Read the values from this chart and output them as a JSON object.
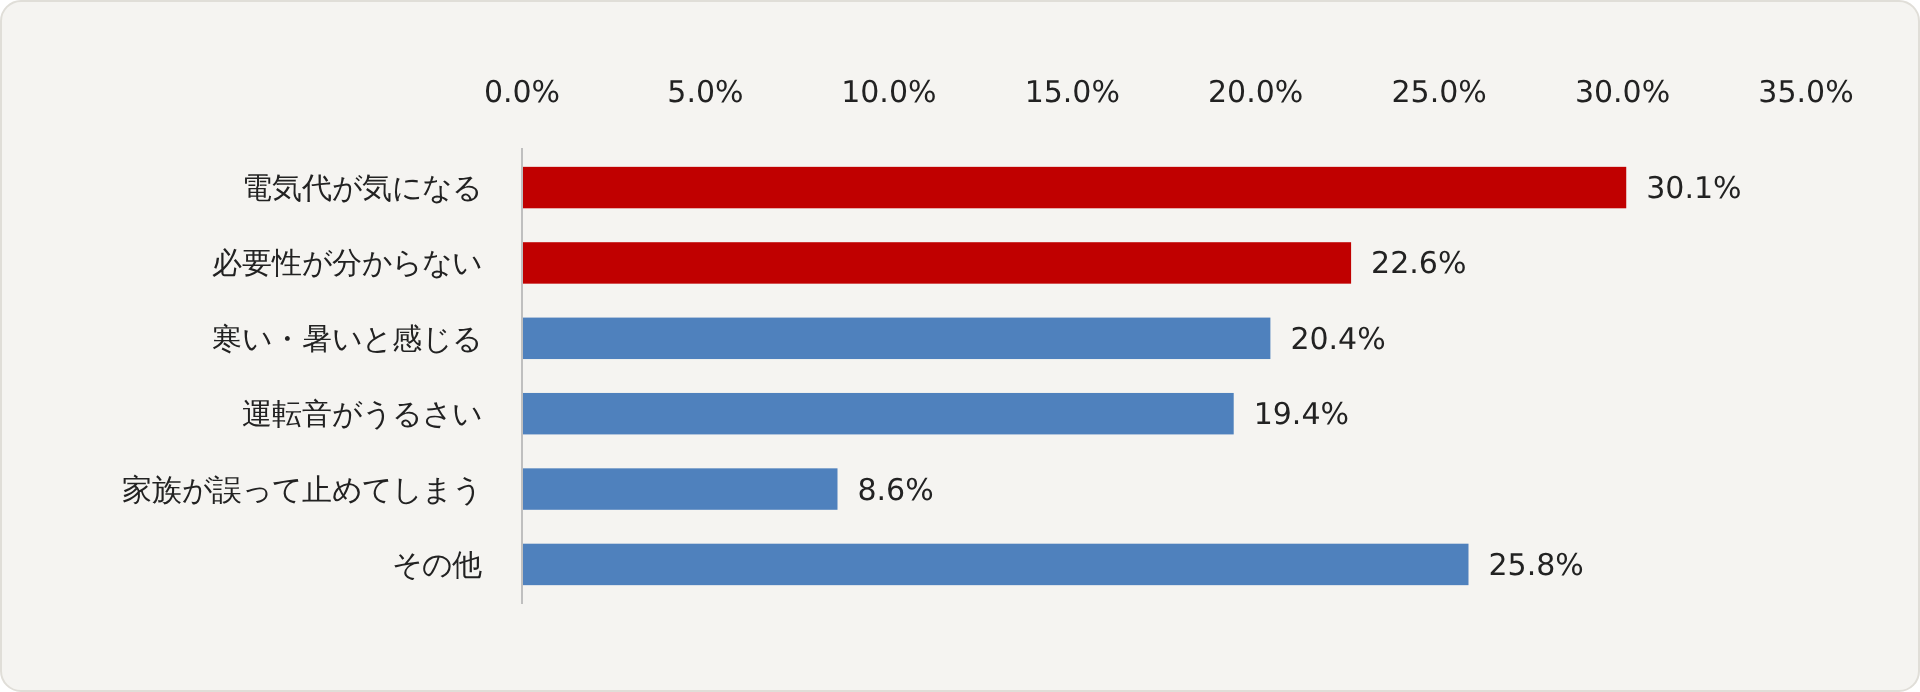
{
  "chart_data": {
    "type": "bar",
    "orientation": "horizontal",
    "categories": [
      "電気代が気になる",
      "必要性が分からない",
      "寒い・暑いと感じる",
      "運転音がうるさい",
      "家族が誤って止めてしまう",
      "その他"
    ],
    "values": [
      30.1,
      22.6,
      20.4,
      19.4,
      8.6,
      25.8
    ],
    "colors": [
      "#c00000",
      "#c00000",
      "#4f81bd",
      "#4f81bd",
      "#4f81bd",
      "#4f81bd"
    ],
    "value_labels": [
      "30.1%",
      "22.6%",
      "20.4%",
      "19.4%",
      "8.6%",
      "25.8%"
    ],
    "xlim": [
      0,
      35
    ],
    "xticks": [
      {
        "value": 0,
        "label": "0.0%"
      },
      {
        "value": 5,
        "label": "5.0%"
      },
      {
        "value": 10,
        "label": "10.0%"
      },
      {
        "value": 15,
        "label": "15.0%"
      },
      {
        "value": 20,
        "label": "20.0%"
      },
      {
        "value": 25,
        "label": "25.0%"
      },
      {
        "value": 30,
        "label": "30.0%"
      },
      {
        "value": 35,
        "label": "35.0%"
      }
    ],
    "grid": false
  }
}
